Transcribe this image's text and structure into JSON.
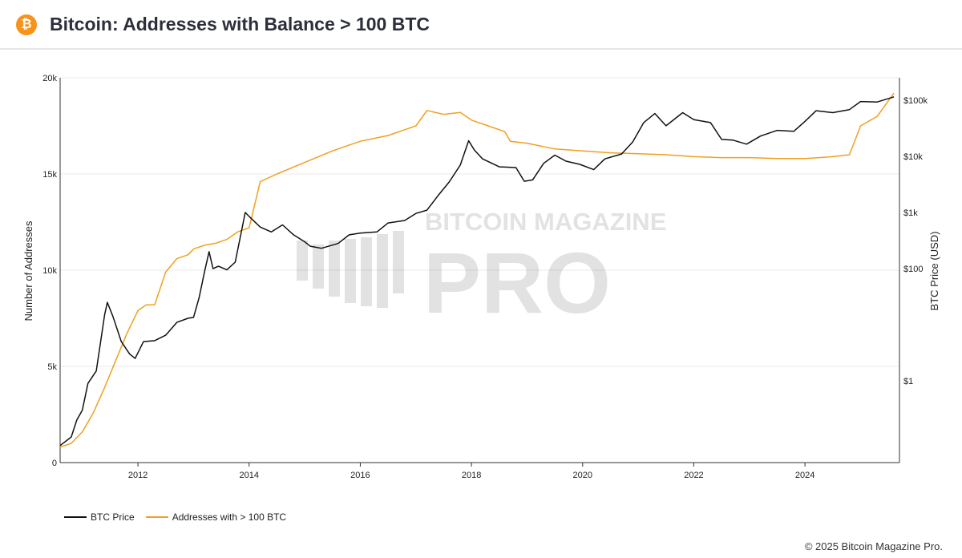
{
  "header": {
    "logo_glyph": "₿",
    "title": "Bitcoin: Addresses with Balance > 100 BTC"
  },
  "footer": {
    "copyright": "© 2025 Bitcoin Magazine Pro."
  },
  "watermark": {
    "line1": "BITCOIN MAGAZINE",
    "line2": "PRO"
  },
  "colors": {
    "price": "#111111",
    "addresses": "#f0a020",
    "grid": "#e8e8e8"
  },
  "chart_data": {
    "type": "line",
    "x_axis": {
      "range": [
        2010.6,
        2025.7
      ],
      "ticks": [
        "2012",
        "2014",
        "2016",
        "2018",
        "2020",
        "2022",
        "2024"
      ]
    },
    "y_left": {
      "label": "Number of Addresses",
      "range": [
        0,
        20000
      ],
      "ticks": [
        0,
        5000,
        10000,
        15000,
        20000
      ],
      "tick_labels": [
        "0",
        "5k",
        "10k",
        "15k",
        "20k"
      ]
    },
    "y_right": {
      "label": "BTC Price (USD)",
      "scale": "log",
      "ticks": [
        1,
        100,
        1000,
        10000,
        100000
      ],
      "tick_labels": [
        "$1",
        "$100",
        "$1k",
        "$10k",
        "$100k"
      ]
    },
    "series": [
      {
        "name": "BTC Price",
        "axis": "right",
        "color": "#111111",
        "x": [
          2010.6,
          2010.8,
          2010.9,
          2011.0,
          2011.1,
          2011.25,
          2011.4,
          2011.45,
          2011.55,
          2011.7,
          2011.85,
          2011.95,
          2012.1,
          2012.3,
          2012.5,
          2012.7,
          2012.9,
          2013.0,
          2013.1,
          2013.2,
          2013.28,
          2013.35,
          2013.45,
          2013.6,
          2013.75,
          2013.85,
          2013.93,
          2014.0,
          2014.2,
          2014.4,
          2014.6,
          2014.8,
          2015.0,
          2015.1,
          2015.3,
          2015.6,
          2015.8,
          2016.0,
          2016.3,
          2016.5,
          2016.8,
          2017.0,
          2017.2,
          2017.4,
          2017.6,
          2017.8,
          2017.95,
          2018.05,
          2018.2,
          2018.5,
          2018.8,
          2018.95,
          2019.1,
          2019.3,
          2019.5,
          2019.7,
          2019.95,
          2020.2,
          2020.4,
          2020.7,
          2020.9,
          2021.1,
          2021.3,
          2021.5,
          2021.8,
          2022.0,
          2022.3,
          2022.5,
          2022.7,
          2022.95,
          2023.2,
          2023.5,
          2023.8,
          2024.0,
          2024.2,
          2024.5,
          2024.8,
          2025.0,
          2025.3,
          2025.6
        ],
        "values": [
          0.07,
          0.1,
          0.2,
          0.3,
          0.9,
          1.5,
          15,
          25,
          14,
          5,
          3,
          2.5,
          5,
          5.2,
          6.5,
          11,
          13,
          13.5,
          30,
          90,
          200,
          100,
          110,
          95,
          130,
          400,
          1000,
          850,
          550,
          450,
          600,
          400,
          300,
          250,
          230,
          280,
          400,
          430,
          450,
          650,
          720,
          960,
          1100,
          2000,
          3500,
          7000,
          19000,
          13000,
          9000,
          6500,
          6300,
          3600,
          3800,
          7500,
          10500,
          8200,
          7200,
          5800,
          9000,
          11000,
          18000,
          40000,
          58000,
          35000,
          60000,
          45000,
          40000,
          20000,
          19500,
          16500,
          23000,
          29000,
          28000,
          42000,
          65000,
          60000,
          68000,
          95000,
          93000,
          115000
        ]
      },
      {
        "name": "Addresses with > 100 BTC",
        "axis": "left",
        "color": "#f0a020",
        "x": [
          2010.6,
          2010.8,
          2011.0,
          2011.2,
          2011.4,
          2011.6,
          2011.8,
          2012.0,
          2012.15,
          2012.3,
          2012.5,
          2012.7,
          2012.9,
          2013.0,
          2013.2,
          2013.4,
          2013.6,
          2013.8,
          2014.0,
          2014.1,
          2014.2,
          2014.5,
          2015.0,
          2015.5,
          2016.0,
          2016.5,
          2017.0,
          2017.2,
          2017.5,
          2017.8,
          2018.0,
          2018.3,
          2018.6,
          2018.7,
          2019.0,
          2019.5,
          2020.0,
          2020.5,
          2021.0,
          2021.5,
          2022.0,
          2022.5,
          2023.0,
          2023.5,
          2024.0,
          2024.5,
          2024.8,
          2025.0,
          2025.3,
          2025.6
        ],
        "values": [
          800,
          1000,
          1600,
          2600,
          3900,
          5300,
          6700,
          7900,
          8200,
          8200,
          9900,
          10600,
          10800,
          11100,
          11300,
          11400,
          11600,
          12000,
          12200,
          13400,
          14600,
          15000,
          15600,
          16200,
          16700,
          17000,
          17500,
          18300,
          18100,
          18200,
          17800,
          17500,
          17200,
          16700,
          16600,
          16300,
          16200,
          16100,
          16050,
          16000,
          15900,
          15850,
          15850,
          15800,
          15800,
          15900,
          16000,
          17500,
          18000,
          19200
        ]
      }
    ]
  }
}
